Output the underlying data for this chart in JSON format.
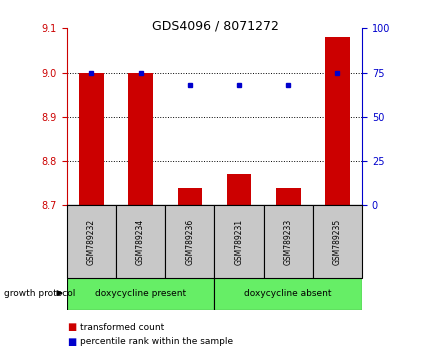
{
  "title": "GDS4096 / 8071272",
  "samples": [
    "GSM789232",
    "GSM789234",
    "GSM789236",
    "GSM789231",
    "GSM789233",
    "GSM789235"
  ],
  "red_values": [
    9.0,
    9.0,
    8.74,
    8.77,
    8.74,
    9.08
  ],
  "blue_values": [
    75,
    75,
    68,
    68,
    68,
    75
  ],
  "ylim_left": [
    8.7,
    9.1
  ],
  "ylim_right": [
    0,
    100
  ],
  "yticks_left": [
    8.7,
    8.8,
    8.9,
    9.0,
    9.1
  ],
  "yticks_right": [
    0,
    25,
    50,
    75,
    100
  ],
  "groups": [
    {
      "label": "doxycycline present",
      "indices": [
        0,
        1,
        2
      ],
      "color": "#66EE66"
    },
    {
      "label": "doxycycline absent",
      "indices": [
        3,
        4,
        5
      ],
      "color": "#66EE66"
    }
  ],
  "group_label": "growth protocol",
  "bar_color": "#CC0000",
  "dot_color": "#0000CC",
  "bar_width": 0.5,
  "background_color": "#ffffff",
  "tick_color_left": "#CC0000",
  "tick_color_right": "#0000CC",
  "grid_color": "#000000",
  "label_bg": "#C8C8C8"
}
